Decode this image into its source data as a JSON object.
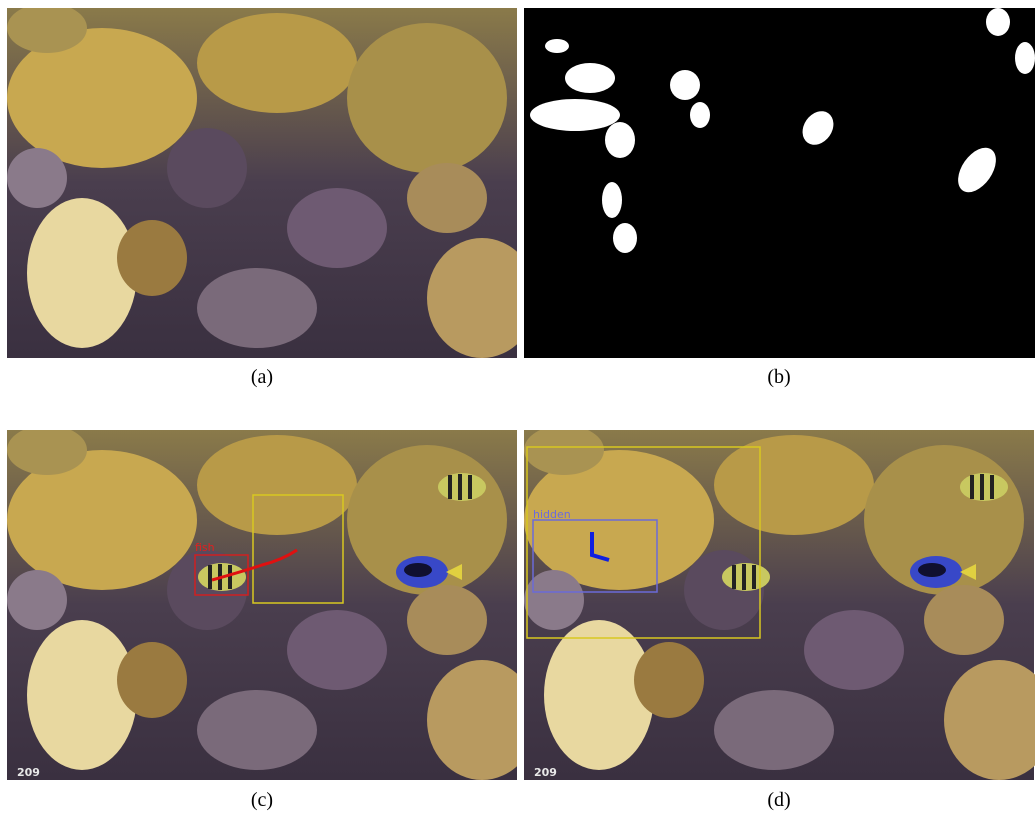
{
  "panels": [
    {
      "caption": "(a)"
    },
    {
      "caption": "(b)"
    },
    {
      "caption": "(c)",
      "labels": [
        "fish",
        "209"
      ]
    },
    {
      "caption": "(d)",
      "labels": [
        "hidden",
        "209"
      ]
    }
  ]
}
